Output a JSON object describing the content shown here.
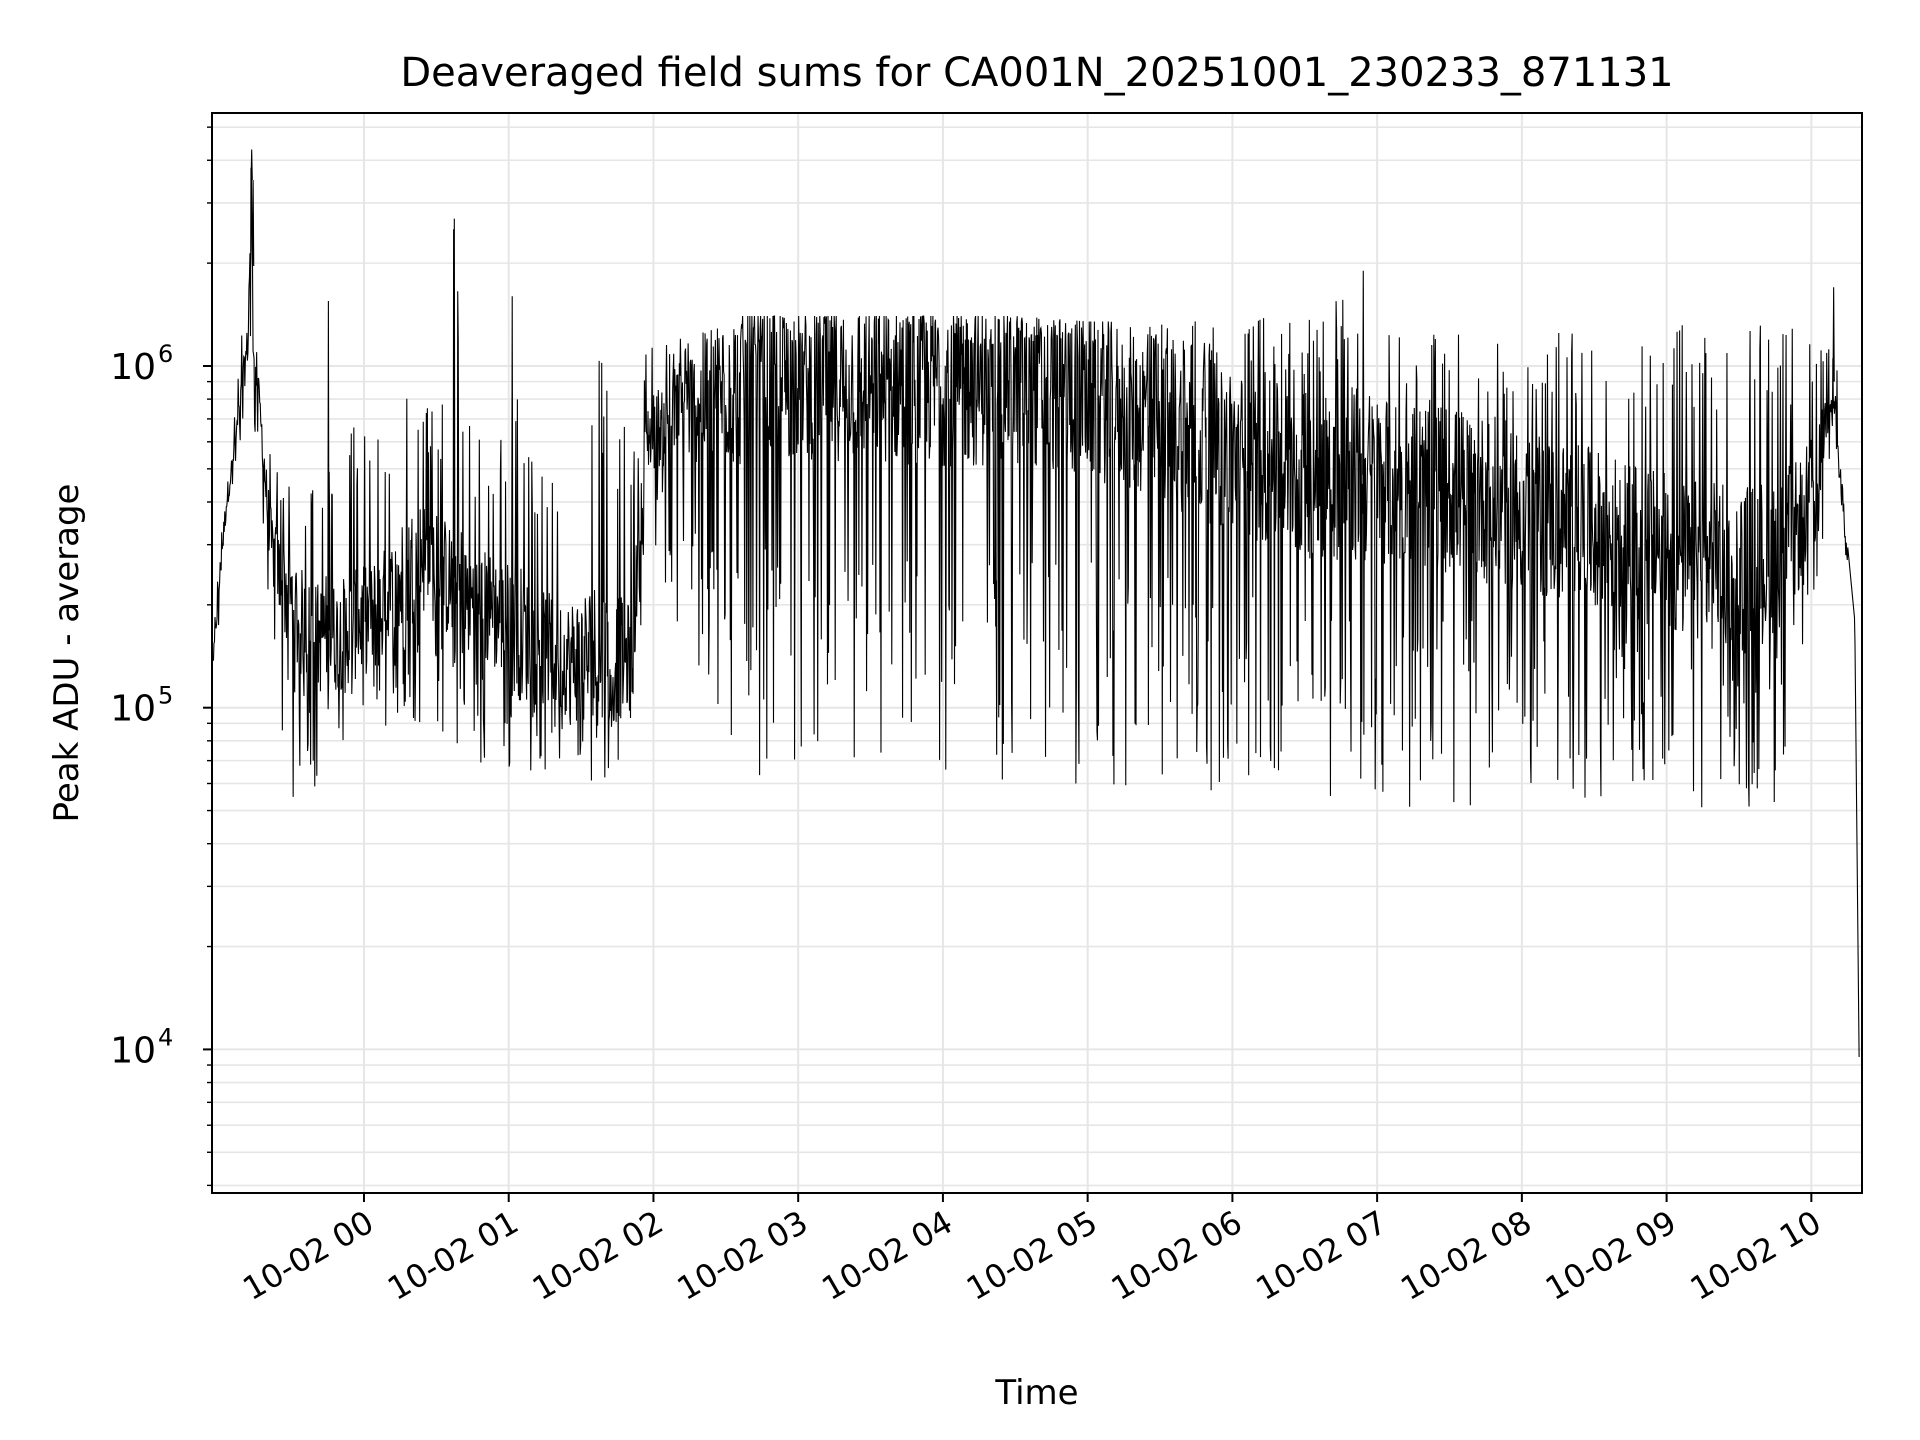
{
  "chart_data": {
    "type": "line",
    "title": "Deaveraged field sums for CA001N_20251001_230233_871131",
    "xlabel": "Time",
    "ylabel": "Peak ADU - average",
    "yscale": "log",
    "ylim": [
      3800,
      5500000
    ],
    "xlim_hours": [
      -1.05,
      10.35
    ],
    "grid": true,
    "line_color": "#000000",
    "grid_color": "#e6e6e6",
    "x_ticks": [
      {
        "hour": 0,
        "label": "10-02 00"
      },
      {
        "hour": 1,
        "label": "10-02 01"
      },
      {
        "hour": 2,
        "label": "10-02 02"
      },
      {
        "hour": 3,
        "label": "10-02 03"
      },
      {
        "hour": 4,
        "label": "10-02 04"
      },
      {
        "hour": 5,
        "label": "10-02 05"
      },
      {
        "hour": 6,
        "label": "10-02 06"
      },
      {
        "hour": 7,
        "label": "10-02 07"
      },
      {
        "hour": 8,
        "label": "10-02 08"
      },
      {
        "hour": 9,
        "label": "10-02 09"
      },
      {
        "hour": 10,
        "label": "10-02 10"
      }
    ],
    "y_ticks": [
      {
        "value": 10000,
        "base": "10",
        "exp": "4"
      },
      {
        "value": 100000,
        "base": "10",
        "exp": "5"
      },
      {
        "value": 1000000,
        "base": "10",
        "exp": "6"
      }
    ],
    "series": [
      {
        "name": "Peak ADU - average",
        "x_hours": [
          -1.04,
          -0.99,
          -0.95,
          -0.9,
          -0.85,
          -0.8,
          -0.78,
          -0.76,
          -0.75,
          -0.73,
          -0.7,
          -0.67,
          -0.64,
          -0.6,
          -0.55,
          -0.5,
          -0.45,
          -0.4,
          -0.3,
          -0.26,
          -0.2,
          -0.1,
          0.0,
          0.1,
          0.2,
          0.3,
          0.4,
          0.5,
          0.6,
          0.62,
          0.7,
          0.8,
          1.0,
          1.02,
          1.1,
          1.2,
          1.4,
          1.6,
          1.85,
          1.95,
          2.2,
          2.4,
          2.6,
          3.0,
          3.5,
          4.0,
          4.5,
          5.0,
          5.5,
          6.0,
          6.5,
          6.9,
          7.0,
          7.5,
          8.0,
          8.5,
          9.0,
          9.3,
          9.5,
          9.7,
          9.9,
          10.05,
          10.1,
          10.15,
          10.2,
          10.25,
          10.3,
          10.33
        ],
        "y_center": [
          140000,
          260000,
          400000,
          550000,
          800000,
          1200000,
          3500000,
          1100000,
          950000,
          800000,
          600000,
          400000,
          300000,
          250000,
          230000,
          200000,
          180000,
          170000,
          160000,
          170000,
          160000,
          170000,
          180000,
          190000,
          210000,
          250000,
          280000,
          260000,
          230000,
          240000,
          210000,
          200000,
          180000,
          190000,
          160000,
          150000,
          140000,
          140000,
          140000,
          620000,
          750000,
          820000,
          870000,
          900000,
          900000,
          880000,
          870000,
          820000,
          700000,
          560000,
          480000,
          480000,
          470000,
          440000,
          380000,
          330000,
          280000,
          260000,
          250000,
          270000,
          330000,
          500000,
          700000,
          900000,
          450000,
          300000,
          180000,
          9500
        ],
        "y_low": [
          120000,
          180000,
          300000,
          450000,
          600000,
          900000,
          800000,
          700000,
          600000,
          450000,
          300000,
          200000,
          150000,
          90000,
          60000,
          45000,
          60000,
          70000,
          50000,
          55000,
          70000,
          80000,
          90000,
          80000,
          85000,
          85000,
          90000,
          85000,
          80000,
          80000,
          70000,
          65000,
          65000,
          62000,
          62000,
          65000,
          65000,
          60000,
          70000,
          300000,
          150000,
          95000,
          60000,
          70000,
          60000,
          60000,
          60000,
          55000,
          55000,
          58000,
          55000,
          55000,
          52000,
          50000,
          50000,
          55000,
          55000,
          50000,
          50000,
          45000,
          90000,
          200000,
          400000,
          600000,
          350000,
          200000,
          70000,
          8000
        ],
        "y_high": [
          160000,
          320000,
          500000,
          700000,
          1200000,
          2000000,
          4300000,
          1800000,
          1300000,
          1000000,
          800000,
          600000,
          550000,
          500000,
          600000,
          650000,
          600000,
          500000,
          450000,
          500000,
          600000,
          700000,
          750000,
          800000,
          850000,
          950000,
          900000,
          850000,
          800000,
          2700000,
          700000,
          650000,
          650000,
          1600000,
          750000,
          650000,
          600000,
          1400000,
          550000,
          1200000,
          1300000,
          1300000,
          1400000,
          1400000,
          1400000,
          1400000,
          1400000,
          1350000,
          1350000,
          1400000,
          1400000,
          1900000,
          1400000,
          1350000,
          1300000,
          1300000,
          1300000,
          1400000,
          1300000,
          1350000,
          1300000,
          1100000,
          1200000,
          1700000,
          700000,
          400000,
          250000,
          10000
        ]
      }
    ]
  }
}
